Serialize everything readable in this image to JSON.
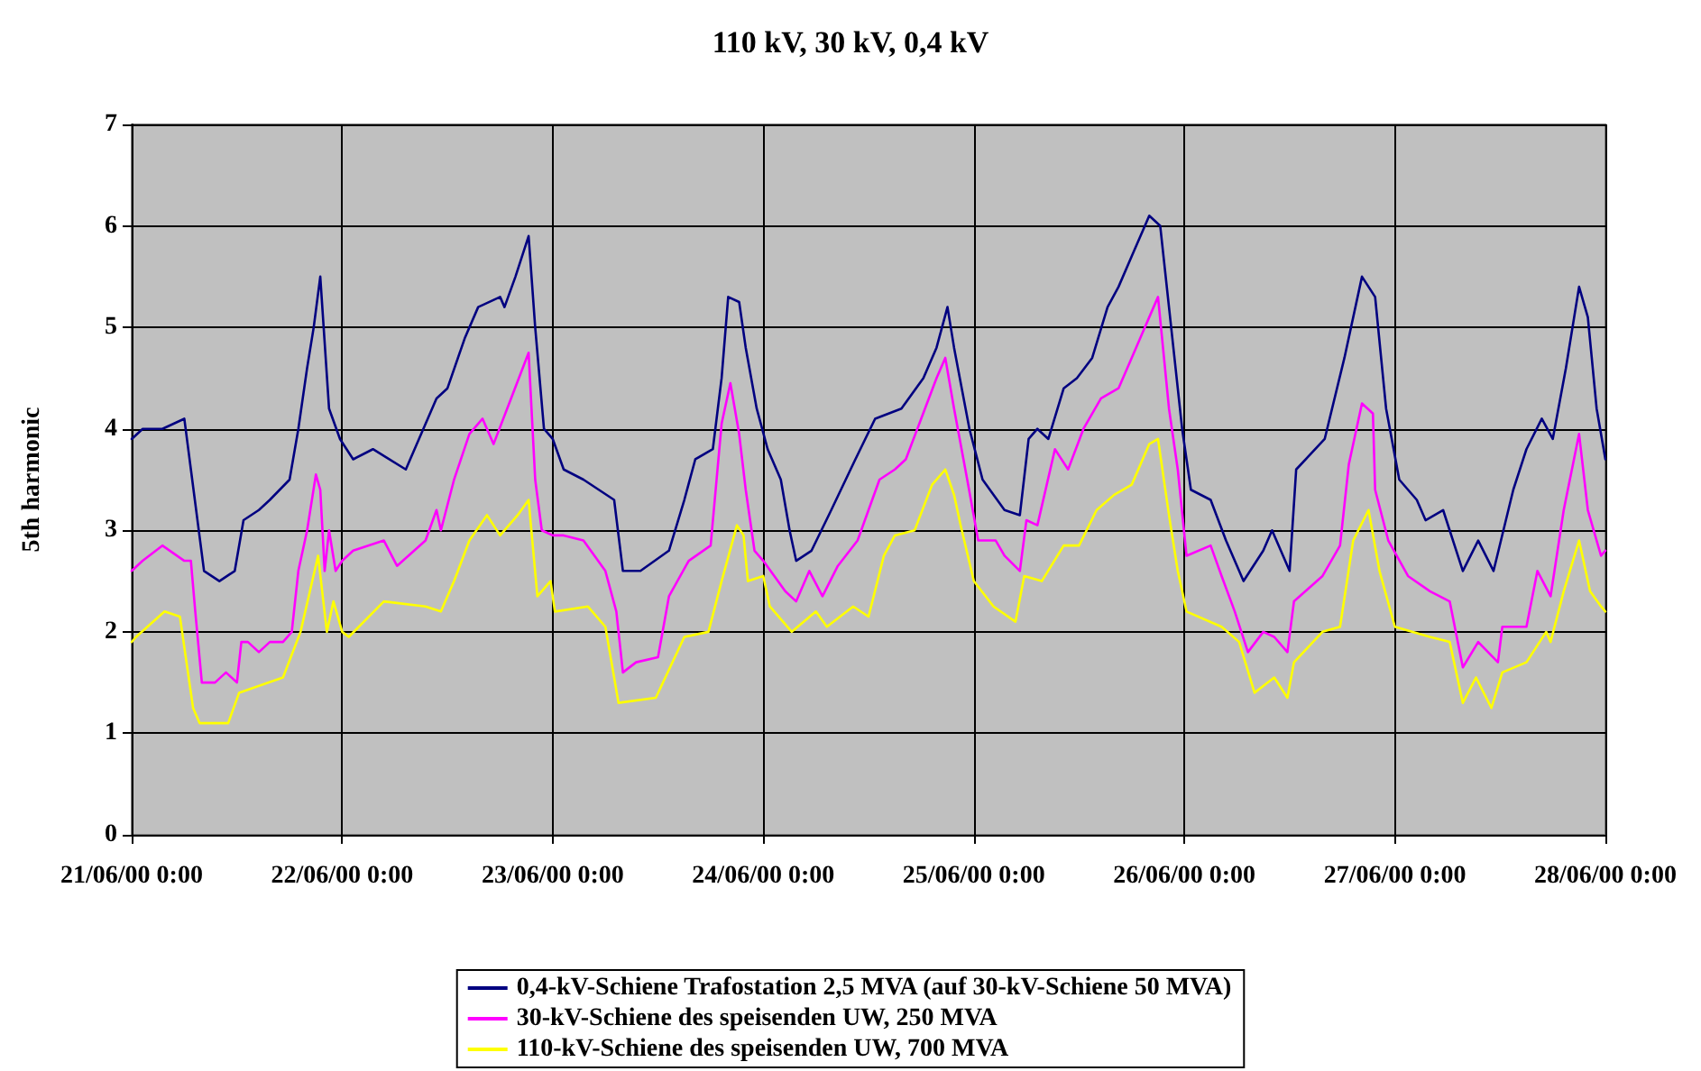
{
  "chart_data": {
    "type": "line",
    "title": "110 kV, 30 kV, 0,4 kV",
    "ylabel": "5th harmonic",
    "xlim": [
      "2000-06-21T00:00",
      "2000-06-28T00:00"
    ],
    "xticks": [
      {
        "value": "2000-06-21T00:00",
        "label": "21/06/00 0:00"
      },
      {
        "value": "2000-06-22T00:00",
        "label": "22/06/00 0:00"
      },
      {
        "value": "2000-06-23T00:00",
        "label": "23/06/00 0:00"
      },
      {
        "value": "2000-06-24T00:00",
        "label": "24/06/00 0:00"
      },
      {
        "value": "2000-06-25T00:00",
        "label": "25/06/00 0:00"
      },
      {
        "value": "2000-06-26T00:00",
        "label": "26/06/00 0:00"
      },
      {
        "value": "2000-06-27T00:00",
        "label": "27/06/00 0:00"
      },
      {
        "value": "2000-06-28T00:00",
        "label": "28/06/00 0:00"
      }
    ],
    "ylim": [
      0,
      7
    ],
    "yticks": [
      0,
      1,
      2,
      3,
      4,
      5,
      6,
      7
    ],
    "grid": true,
    "legend": "bottom",
    "marker": "none",
    "line_style": "solid",
    "series": [
      {
        "name": "0,4-kV-Schiene Trafostation 2,5 MVA (auf 30-kV-Schiene 50 MVA)",
        "color": "#000080",
        "x": [
          "2000-06-21T00:00",
          "2000-06-21T01:15",
          "2000-06-21T03:30",
          "2000-06-21T06:00",
          "2000-06-21T06:45",
          "2000-06-21T08:15",
          "2000-06-21T10:00",
          "2000-06-21T11:45",
          "2000-06-21T12:45",
          "2000-06-21T14:30",
          "2000-06-21T15:45",
          "2000-06-21T18:00",
          "2000-06-21T19:00",
          "2000-06-21T20:00",
          "2000-06-21T20:45",
          "2000-06-21T21:30",
          "2000-06-21T22:30",
          "2000-06-21T23:45",
          "2000-06-22T01:15",
          "2000-06-22T03:30",
          "2000-06-22T07:15",
          "2000-06-22T08:45",
          "2000-06-22T10:45",
          "2000-06-22T12:00",
          "2000-06-22T14:00",
          "2000-06-22T15:30",
          "2000-06-22T18:00",
          "2000-06-22T18:30",
          "2000-06-22T19:45",
          "2000-06-22T21:15",
          "2000-06-22T22:00",
          "2000-06-22T23:00",
          "2000-06-23T00:00",
          "2000-06-23T01:15",
          "2000-06-23T03:30",
          "2000-06-23T07:00",
          "2000-06-23T08:00",
          "2000-06-23T10:00",
          "2000-06-23T13:15",
          "2000-06-23T15:00",
          "2000-06-23T16:15",
          "2000-06-23T18:15",
          "2000-06-23T19:15",
          "2000-06-23T20:00",
          "2000-06-23T21:15",
          "2000-06-23T22:00",
          "2000-06-23T23:15",
          "2000-06-24T00:30",
          "2000-06-24T02:00",
          "2000-06-24T03:00",
          "2000-06-24T03:45",
          "2000-06-24T05:30",
          "2000-06-24T07:45",
          "2000-06-24T10:30",
          "2000-06-24T12:45",
          "2000-06-24T15:45",
          "2000-06-24T18:15",
          "2000-06-24T19:45",
          "2000-06-24T21:00",
          "2000-06-24T21:45",
          "2000-06-24T23:30",
          "2000-06-25T01:00",
          "2000-06-25T03:30",
          "2000-06-25T05:15",
          "2000-06-25T06:15",
          "2000-06-25T07:15",
          "2000-06-25T08:30",
          "2000-06-25T10:15",
          "2000-06-25T11:45",
          "2000-06-25T13:30",
          "2000-06-25T15:15",
          "2000-06-25T16:30",
          "2000-06-25T18:00",
          "2000-06-25T20:00",
          "2000-06-25T21:15",
          "2000-06-25T22:15",
          "2000-06-25T23:45",
          "2000-06-26T00:45",
          "2000-06-26T03:00",
          "2000-06-26T04:45",
          "2000-06-26T06:45",
          "2000-06-26T09:00",
          "2000-06-26T10:00",
          "2000-06-26T12:00",
          "2000-06-26T12:45",
          "2000-06-26T16:00",
          "2000-06-26T18:15",
          "2000-06-26T20:15",
          "2000-06-26T21:45",
          "2000-06-26T23:00",
          "2000-06-27T00:30",
          "2000-06-27T02:30",
          "2000-06-27T03:30",
          "2000-06-27T05:30",
          "2000-06-27T07:45",
          "2000-06-27T09:30",
          "2000-06-27T11:15",
          "2000-06-27T13:30",
          "2000-06-27T15:00",
          "2000-06-27T16:45",
          "2000-06-27T18:00",
          "2000-06-27T19:30",
          "2000-06-27T21:00",
          "2000-06-27T22:00",
          "2000-06-27T23:00",
          "2000-06-28T00:00"
        ],
        "values": [
          3.9,
          4.0,
          4.0,
          4.1,
          3.6,
          2.6,
          2.5,
          2.6,
          3.1,
          3.2,
          3.3,
          3.5,
          4.0,
          4.6,
          5.0,
          5.5,
          4.2,
          3.9,
          3.7,
          3.8,
          3.6,
          3.9,
          4.3,
          4.4,
          4.9,
          5.2,
          5.3,
          5.2,
          5.5,
          5.9,
          5.0,
          4.0,
          3.9,
          3.6,
          3.5,
          3.3,
          2.6,
          2.6,
          2.8,
          3.3,
          3.7,
          3.8,
          4.5,
          5.3,
          5.25,
          4.8,
          4.2,
          3.8,
          3.5,
          3.0,
          2.7,
          2.8,
          3.2,
          3.7,
          4.1,
          4.2,
          4.5,
          4.8,
          5.2,
          4.8,
          4.0,
          3.5,
          3.2,
          3.15,
          3.9,
          4.0,
          3.9,
          4.4,
          4.5,
          4.7,
          5.2,
          5.4,
          5.7,
          6.1,
          6.0,
          5.2,
          4.0,
          3.4,
          3.3,
          2.9,
          2.5,
          2.8,
          3.0,
          2.6,
          3.6,
          3.9,
          4.7,
          5.5,
          5.3,
          4.2,
          3.5,
          3.3,
          3.1,
          3.2,
          2.6,
          2.9,
          2.6,
          3.4,
          3.8,
          4.1,
          3.9,
          4.6,
          5.4,
          5.1,
          4.2,
          3.7
        ]
      },
      {
        "name": "30-kV-Schiene des speisenden UW, 250 MVA",
        "color": "#ff00ff",
        "x": [
          "2000-06-21T00:00",
          "2000-06-21T01:15",
          "2000-06-21T03:30",
          "2000-06-21T06:00",
          "2000-06-21T06:45",
          "2000-06-21T07:15",
          "2000-06-21T08:00",
          "2000-06-21T09:30",
          "2000-06-21T10:45",
          "2000-06-21T12:00",
          "2000-06-21T12:30",
          "2000-06-21T13:15",
          "2000-06-21T14:30",
          "2000-06-21T15:45",
          "2000-06-21T17:15",
          "2000-06-21T18:15",
          "2000-06-21T19:00",
          "2000-06-21T20:00",
          "2000-06-21T21:00",
          "2000-06-21T21:30",
          "2000-06-21T22:00",
          "2000-06-21T22:30",
          "2000-06-21T23:15",
          "2000-06-22T00:00",
          "2000-06-22T01:15",
          "2000-06-22T04:45",
          "2000-06-22T06:15",
          "2000-06-22T09:30",
          "2000-06-22T10:45",
          "2000-06-22T11:15",
          "2000-06-22T12:45",
          "2000-06-22T14:30",
          "2000-06-22T16:00",
          "2000-06-22T17:15",
          "2000-06-22T19:15",
          "2000-06-22T21:15",
          "2000-06-22T22:00",
          "2000-06-22T22:45",
          "2000-06-23T00:00",
          "2000-06-23T01:15",
          "2000-06-23T03:30",
          "2000-06-23T06:00",
          "2000-06-23T07:15",
          "2000-06-23T08:00",
          "2000-06-23T09:30",
          "2000-06-23T12:00",
          "2000-06-23T13:15",
          "2000-06-23T15:30",
          "2000-06-23T18:00",
          "2000-06-23T19:15",
          "2000-06-23T20:15",
          "2000-06-23T21:15",
          "2000-06-23T22:00",
          "2000-06-23T23:00",
          "2000-06-24T00:00",
          "2000-06-24T02:30",
          "2000-06-24T03:45",
          "2000-06-24T05:15",
          "2000-06-24T06:45",
          "2000-06-24T08:30",
          "2000-06-24T10:45",
          "2000-06-24T13:15",
          "2000-06-24T15:00",
          "2000-06-24T16:15",
          "2000-06-24T18:00",
          "2000-06-24T19:45",
          "2000-06-24T20:45",
          "2000-06-24T21:45",
          "2000-06-24T23:15",
          "2000-06-25T00:30",
          "2000-06-25T02:30",
          "2000-06-25T03:30",
          "2000-06-25T05:15",
          "2000-06-25T06:00",
          "2000-06-25T07:15",
          "2000-06-25T09:15",
          "2000-06-25T10:45",
          "2000-06-25T12:30",
          "2000-06-25T14:30",
          "2000-06-25T16:30",
          "2000-06-25T18:30",
          "2000-06-25T20:00",
          "2000-06-25T21:00",
          "2000-06-25T22:15",
          "2000-06-25T23:15",
          "2000-06-26T00:15",
          "2000-06-26T03:00",
          "2000-06-26T04:15",
          "2000-06-26T05:45",
          "2000-06-26T07:15",
          "2000-06-26T09:00",
          "2000-06-26T10:15",
          "2000-06-26T11:45",
          "2000-06-26T12:30",
          "2000-06-26T15:45",
          "2000-06-26T17:45",
          "2000-06-26T18:45",
          "2000-06-26T20:15",
          "2000-06-26T21:30",
          "2000-06-26T21:45",
          "2000-06-26T23:15",
          "2000-06-27T01:30",
          "2000-06-27T04:00",
          "2000-06-27T06:15",
          "2000-06-27T07:45",
          "2000-06-27T09:30",
          "2000-06-27T11:45",
          "2000-06-27T12:15",
          "2000-06-27T15:00",
          "2000-06-27T16:15",
          "2000-06-27T17:45",
          "2000-06-27T19:15",
          "2000-06-27T21:00",
          "2000-06-27T22:00",
          "2000-06-27T23:30",
          "2000-06-28T00:00"
        ],
        "values": [
          2.6,
          2.7,
          2.85,
          2.7,
          2.7,
          2.2,
          1.5,
          1.5,
          1.6,
          1.5,
          1.9,
          1.9,
          1.8,
          1.9,
          1.9,
          2.0,
          2.6,
          3.0,
          3.55,
          3.4,
          2.6,
          3.0,
          2.6,
          2.7,
          2.8,
          2.9,
          2.65,
          2.9,
          3.2,
          3.0,
          3.5,
          3.95,
          4.1,
          3.85,
          4.3,
          4.75,
          3.5,
          3.0,
          2.95,
          2.95,
          2.9,
          2.6,
          2.2,
          1.6,
          1.7,
          1.75,
          2.35,
          2.7,
          2.85,
          4.05,
          4.45,
          3.95,
          3.4,
          2.8,
          2.7,
          2.4,
          2.3,
          2.6,
          2.35,
          2.65,
          2.9,
          3.5,
          3.6,
          3.7,
          4.1,
          4.5,
          4.7,
          4.2,
          3.5,
          2.9,
          2.9,
          2.75,
          2.6,
          3.1,
          3.05,
          3.8,
          3.6,
          4.0,
          4.3,
          4.4,
          4.8,
          5.1,
          5.3,
          4.2,
          3.6,
          2.75,
          2.85,
          2.55,
          2.2,
          1.8,
          2.0,
          1.95,
          1.8,
          2.3,
          2.55,
          2.85,
          3.65,
          4.25,
          4.15,
          3.4,
          2.9,
          2.55,
          2.4,
          2.3,
          1.65,
          1.9,
          1.7,
          2.05,
          2.05,
          2.6,
          2.35,
          3.2,
          3.95,
          3.2,
          2.75,
          2.8
        ]
      },
      {
        "name": "110-kV-Schiene des speisenden UW, 700 MVA",
        "color": "#ffff00",
        "x": [
          "2000-06-21T00:00",
          "2000-06-21T00:30",
          "2000-06-21T03:45",
          "2000-06-21T05:30",
          "2000-06-21T07:00",
          "2000-06-21T07:45",
          "2000-06-21T11:00",
          "2000-06-21T12:15",
          "2000-06-21T17:15",
          "2000-06-21T19:15",
          "2000-06-21T21:15",
          "2000-06-21T22:15",
          "2000-06-21T23:00",
          "2000-06-22T00:00",
          "2000-06-22T00:45",
          "2000-06-22T04:45",
          "2000-06-22T09:30",
          "2000-06-22T11:15",
          "2000-06-22T12:45",
          "2000-06-22T14:30",
          "2000-06-22T16:30",
          "2000-06-22T18:00",
          "2000-06-22T20:00",
          "2000-06-22T21:15",
          "2000-06-22T22:15",
          "2000-06-22T23:45",
          "2000-06-23T00:15",
          "2000-06-23T04:00",
          "2000-06-23T06:00",
          "2000-06-23T07:30",
          "2000-06-23T11:45",
          "2000-06-23T15:00",
          "2000-06-23T17:45",
          "2000-06-23T19:15",
          "2000-06-23T21:00",
          "2000-06-23T21:45",
          "2000-06-23T22:15",
          "2000-06-24T00:00",
          "2000-06-24T00:45",
          "2000-06-24T03:15",
          "2000-06-24T06:00",
          "2000-06-24T07:15",
          "2000-06-24T10:15",
          "2000-06-24T12:00",
          "2000-06-24T13:45",
          "2000-06-24T15:00",
          "2000-06-24T17:15",
          "2000-06-24T19:15",
          "2000-06-24T20:45",
          "2000-06-24T21:45",
          "2000-06-24T22:30",
          "2000-06-25T00:00",
          "2000-06-25T02:15",
          "2000-06-25T04:45",
          "2000-06-25T05:45",
          "2000-06-25T07:45",
          "2000-06-25T10:15",
          "2000-06-25T12:00",
          "2000-06-25T14:00",
          "2000-06-25T16:00",
          "2000-06-25T18:00",
          "2000-06-25T20:00",
          "2000-06-25T21:00",
          "2000-06-25T22:15",
          "2000-06-25T23:15",
          "2000-06-26T00:15",
          "2000-06-26T04:15",
          "2000-06-26T06:15",
          "2000-06-26T08:00",
          "2000-06-26T10:15",
          "2000-06-26T11:45",
          "2000-06-26T12:30",
          "2000-06-26T15:45",
          "2000-06-26T17:45",
          "2000-06-26T19:15",
          "2000-06-26T21:00",
          "2000-06-26T22:15",
          "2000-06-27T00:00",
          "2000-06-27T04:00",
          "2000-06-27T06:15",
          "2000-06-27T07:45",
          "2000-06-27T09:15",
          "2000-06-27T11:00",
          "2000-06-27T12:15",
          "2000-06-27T15:00",
          "2000-06-27T17:15",
          "2000-06-27T17:45",
          "2000-06-27T19:15",
          "2000-06-27T21:00",
          "2000-06-27T22:15",
          "2000-06-27T23:30",
          "2000-06-28T00:00"
        ],
        "values": [
          1.9,
          1.95,
          2.2,
          2.15,
          1.25,
          1.1,
          1.1,
          1.4,
          1.55,
          2.0,
          2.75,
          2.0,
          2.3,
          2.0,
          1.95,
          2.3,
          2.25,
          2.2,
          2.5,
          2.9,
          3.15,
          2.95,
          3.15,
          3.3,
          2.35,
          2.5,
          2.2,
          2.25,
          2.05,
          1.3,
          1.35,
          1.95,
          2.0,
          2.5,
          3.05,
          2.95,
          2.5,
          2.55,
          2.25,
          2.0,
          2.2,
          2.05,
          2.25,
          2.15,
          2.75,
          2.95,
          3.0,
          3.45,
          3.6,
          3.35,
          3.05,
          2.5,
          2.25,
          2.1,
          2.55,
          2.5,
          2.85,
          2.85,
          3.2,
          3.35,
          3.45,
          3.85,
          3.9,
          3.15,
          2.6,
          2.2,
          2.05,
          1.9,
          1.4,
          1.55,
          1.35,
          1.7,
          2.0,
          2.05,
          2.9,
          3.2,
          2.6,
          2.05,
          1.95,
          1.9,
          1.3,
          1.55,
          1.25,
          1.6,
          1.7,
          2.0,
          1.9,
          2.4,
          2.9,
          2.4,
          2.25,
          2.2
        ]
      }
    ]
  }
}
